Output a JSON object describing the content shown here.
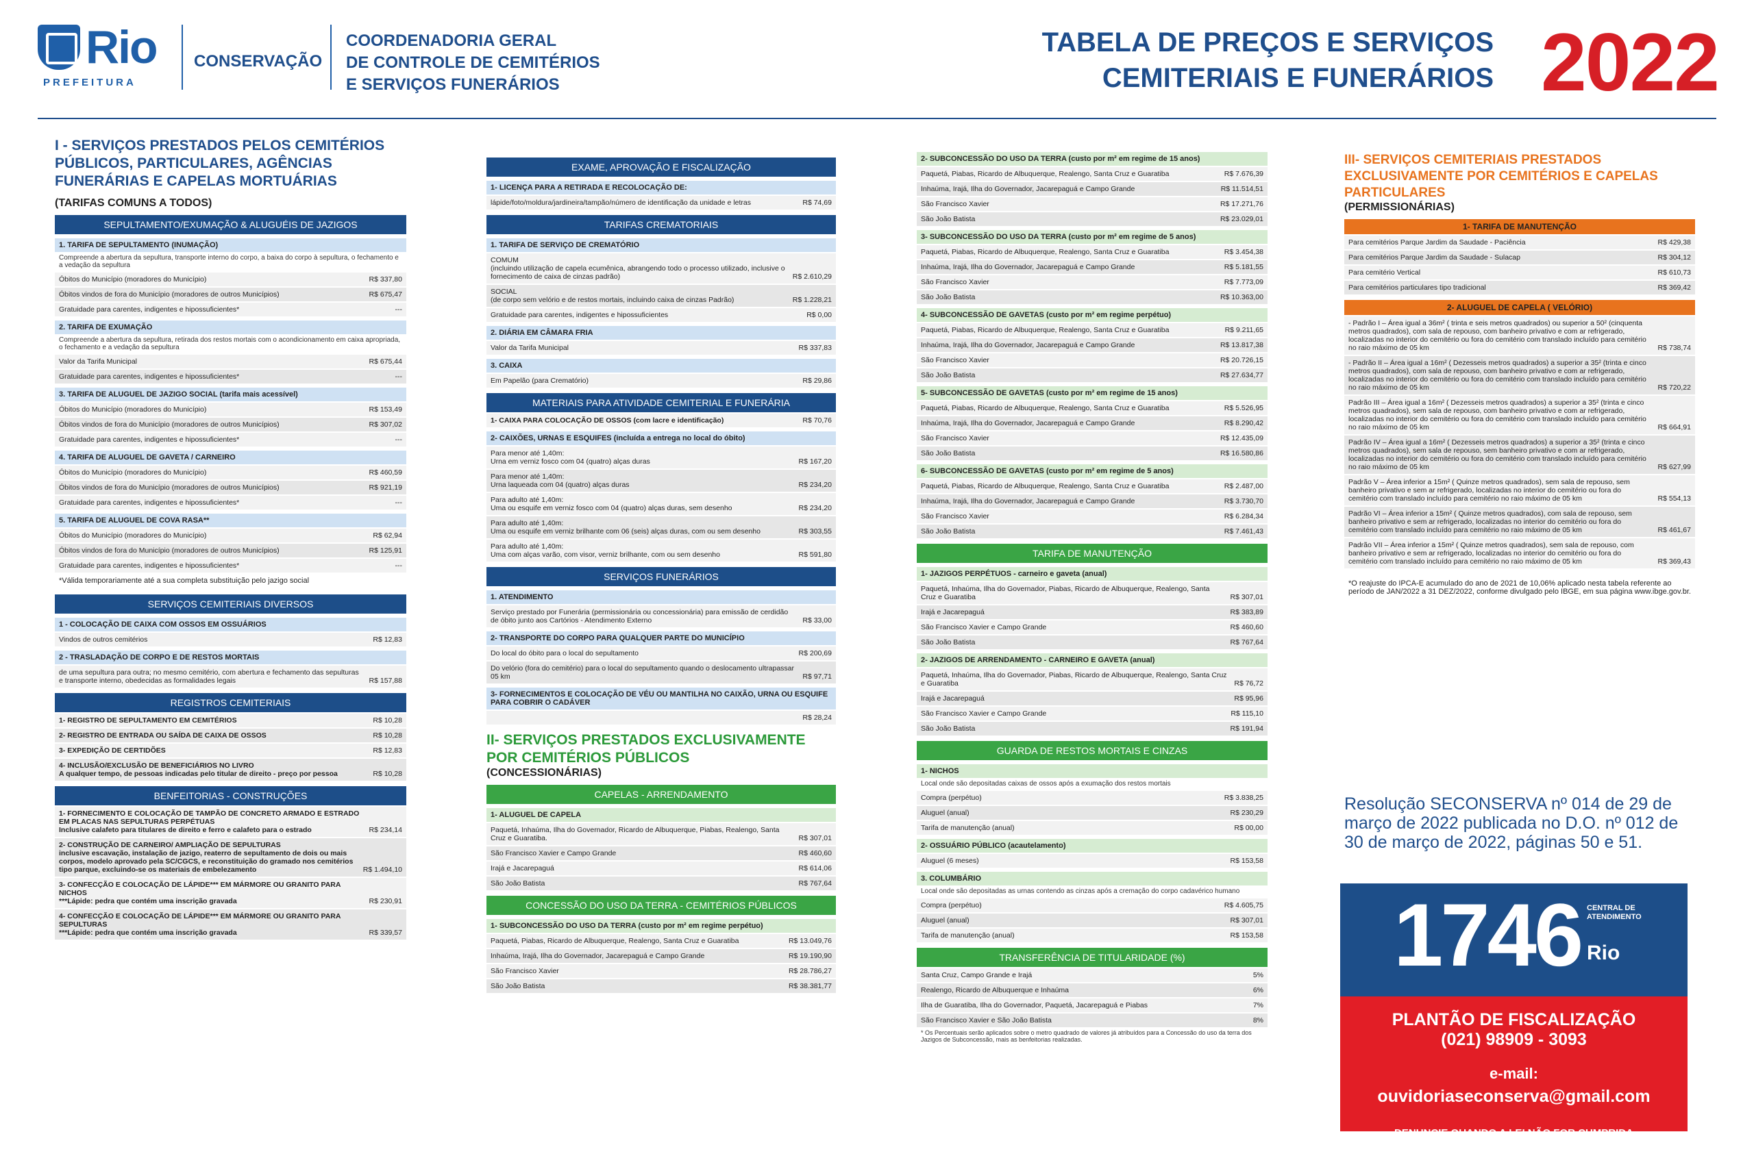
{
  "header": {
    "brand": "Rio",
    "prefeitura": "PREFEITURA",
    "conservacao": "CONSERVAÇÃO",
    "coord": [
      "COORDENADORIA GERAL",
      "DE CONTROLE DE CEMITÉRIOS",
      "E SERVIÇOS FUNERÁRIOS"
    ],
    "title": [
      "TABELA DE PREÇOS E SERVIÇOS",
      "CEMITERIAIS E FUNERÁRIOS"
    ],
    "year": "2022"
  },
  "colors": {
    "blue": "#1d4e89",
    "green": "#3aa545",
    "orange": "#e8731e",
    "red": "#d61f26"
  },
  "c1": {
    "sec": "I - SERVIÇOS PRESTADOS PELOS CEMITÉRIOS PÚBLICOS, PARTICULARES, AGÊNCIAS FUNERÁRIAS E CAPELAS MORTUÁRIAS",
    "sub": "(TARIFAS COMUNS A TODOS)",
    "bar1": "SEPULTAMENTO/EXUMAÇÃO & ALUGUÉIS DE JAZIGOS",
    "t1": "1. TARIFA DE SEPULTAMENTO (INUMAÇÃO)",
    "d1": "Compreende a abertura da sepultura, transporte interno do corpo, a baixa do corpo à sepultura, o fechamento e a vedação da sepultura",
    "r1": [
      [
        "Óbitos do Município (moradores do Município)",
        "R$ 337,80"
      ],
      [
        "Óbitos vindos de fora do Município (moradores de outros Municípios)",
        "R$ 675,47"
      ],
      [
        "Gratuidade para carentes, indigentes e hipossuficientes*",
        "---"
      ]
    ],
    "t2": "2. TARIFA DE EXUMAÇÃO",
    "d2": "Compreende a abertura da sepultura, retirada dos restos mortais com o acondicionamento em caixa apropriada, o fechamento e a vedação da sepultura",
    "r2": [
      [
        "Valor da Tarifa Municipal",
        "R$ 675,44"
      ],
      [
        "Gratuidade para carentes, indigentes e hipossuficientes*",
        "---"
      ]
    ],
    "t3": "3. TARIFA DE ALUGUEL DE JAZIGO SOCIAL (tarifa mais acessível)",
    "r3": [
      [
        "Óbitos do Município (moradores do Município)",
        "R$ 153,49"
      ],
      [
        "Óbitos vindos de fora do Município (moradores de outros Municípios)",
        "R$ 307,02"
      ],
      [
        "Gratuidade para carentes, indigentes e hipossuficientes*",
        "---"
      ]
    ],
    "t4": "4. TARIFA DE ALUGUEL DE GAVETA / CARNEIRO",
    "r4": [
      [
        "Óbitos do Município (moradores do Município)",
        "R$ 460,59"
      ],
      [
        "Óbitos vindos de fora do Município (moradores de outros Municípios)",
        "R$ 921,19"
      ],
      [
        "Gratuidade para carentes, indigentes e hipossuficientes*",
        "---"
      ]
    ],
    "t5": "5. TARIFA DE ALUGUEL DE COVA RASA**",
    "r5": [
      [
        "Óbitos do Município (moradores do Município)",
        "R$ 62,94"
      ],
      [
        "Óbitos vindos de fora do Município (moradores de outros Municípios)",
        "R$ 125,91"
      ],
      [
        "Gratuidade para carentes, indigentes e hipossuficientes*",
        "---"
      ]
    ],
    "n5": "*Válida temporariamente até a sua completa substituição pelo jazigo social",
    "bar2": "SERVIÇOS CEMITERIAIS DIVERSOS",
    "t6": "1 - COLOCAÇÃO DE CAIXA COM OSSOS EM OSSUÁRIOS",
    "r6": [
      [
        "Vindos de outros cemitérios",
        "R$ 12,83"
      ]
    ],
    "t7": "2 - TRASLADAÇÃO DE CORPO E DE RESTOS MORTAIS",
    "r7": [
      [
        "de uma sepultura para outra; no mesmo cemitério, com abertura e fechamento das sepulturas e transporte interno, obedecidas as formalidades legais",
        "R$ 157,88"
      ]
    ],
    "bar3": "REGISTROS CEMITERIAIS",
    "r8": [
      [
        "1- REGISTRO DE SEPULTAMENTO EM CEMITÉRIOS",
        "R$ 10,28"
      ],
      [
        "2- REGISTRO DE ENTRADA OU SAÍDA DE CAIXA DE OSSOS",
        "R$ 10,28"
      ],
      [
        "3- EXPEDIÇÃO DE CERTIDÕES",
        "R$ 12,83"
      ],
      [
        "4- INCLUSÃO/EXCLUSÃO DE BENEFICIÁRIOS NO LIVRO\nA qualquer tempo, de pessoas indicadas pelo titular de direito - preço por pessoa",
        "R$ 10,28"
      ]
    ],
    "bar4": "BENFEITORIAS - CONSTRUÇÕES",
    "r9": [
      [
        "1- FORNECIMENTO E COLOCAÇÃO DE TAMPÃO DE CONCRETO ARMADO E ESTRADO EM PLACAS NAS SEPULTURAS PERPÉTUAS\nInclusive calafeto para titulares de direito e ferro e calafeto para o estrado",
        "R$ 234,14"
      ],
      [
        "2- CONSTRUÇÃO DE CARNEIRO/ AMPLIAÇÃO DE SEPULTURAS\ninclusive escavação, instalação de jazigo, reaterro de sepultamento de dois ou mais corpos, modelo aprovado pela SC/CGCS, e reconstituição do gramado nos cemitérios tipo parque, excluindo-se os materiais de embelezamento",
        "R$ 1.494,10"
      ],
      [
        "3- CONFECÇÃO E COLOCAÇÃO DE LÁPIDE*** EM MÁRMORE OU GRANITO PARA NICHOS\n***Lápide: pedra que contém uma inscrição gravada",
        "R$ 230,91"
      ],
      [
        "4- CONFECÇÃO E COLOCAÇÃO DE LÁPIDE*** EM MÁRMORE OU GRANITO PARA SEPULTURAS\n***Lápide: pedra que contém uma inscrição gravada",
        "R$ 339,57"
      ]
    ]
  },
  "c2": {
    "bar1": "EXAME, APROVAÇÃO E FISCALIZAÇÃO",
    "t1": "1- LICENÇA PARA A RETIRADA E RECOLOCAÇÃO DE:",
    "r1": [
      [
        "lápide/foto/moldura/jardineira/tampão/número de identificação da unidade e letras",
        "R$ 74,69"
      ]
    ],
    "bar2": "TARIFAS CREMATORIAIS",
    "t2": "1. TARIFA DE SERVIÇO DE CREMATÓRIO",
    "r2": [
      [
        "COMUM\n(incluindo utilização de capela ecumênica, abrangendo todo o processo utilizado, inclusive o fornecimento de caixa de cinzas padrão)",
        "R$ 2.610,29"
      ],
      [
        "SOCIAL\n(de corpo sem velório e de restos mortais, incluindo caixa de cinzas Padrão)",
        "R$ 1.228,21"
      ],
      [
        "Gratuidade para carentes, indigentes e hipossuficientes",
        "R$ 0,00"
      ]
    ],
    "t3": "2. DIÁRIA EM CÂMARA FRIA",
    "r3": [
      [
        "Valor da Tarifa Municipal",
        "R$ 337,83"
      ]
    ],
    "t4": "3. CAIXA",
    "r4": [
      [
        "Em Papelão (para Crematório)",
        "R$ 29,86"
      ]
    ],
    "bar3": "MATERIAIS PARA ATIVIDADE CEMITERIAL E FUNERÁRIA",
    "r5": [
      [
        "1- CAIXA PARA COLOCAÇÃO DE OSSOS (com lacre e identificação)",
        "R$ 70,76"
      ]
    ],
    "t6": "2- CAIXÕES, URNAS E ESQUIFES (incluída a entrega no local do óbito)",
    "r6": [
      [
        "Para menor até 1,40m:\nUrna em verniz fosco com 04 (quatro) alças duras",
        "R$ 167,20"
      ],
      [
        "Para menor até 1,40m:\nUrna laqueada com 04 (quatro) alças duras",
        "R$ 234,20"
      ],
      [
        "Para adulto até 1,40m:\nUma ou esquife em verniz fosco com 04 (quatro) alças duras, sem desenho",
        "R$ 234,20"
      ],
      [
        "Para adulto até 1,40m:\nUma ou esquife em verniz brilhante com 06 (seis) alças duras, com ou sem desenho",
        "R$ 303,55"
      ],
      [
        "Para adulto até 1,40m:\nUma com alças varão, com visor, verniz brilhante, com ou sem desenho",
        "R$ 591,80"
      ]
    ],
    "bar4": "SERVIÇOS FUNERÁRIOS",
    "t7": "1. ATENDIMENTO",
    "r7": [
      [
        "Serviço prestado por Funerária (permissionária ou concessionária) para emissão de cerdidão de óbito junto aos Cartórios - Atendimento Externo",
        "R$ 33,00"
      ]
    ],
    "t8": "2- TRANSPORTE DO CORPO PARA QUALQUER PARTE DO MUNICÍPIO",
    "r8": [
      [
        "Do local do óbito para o local do sepultamento",
        "R$ 200,69"
      ],
      [
        "Do velório (fora do cemitério) para o local do sepultamento quando o deslocamento ultrapassar 05 km",
        "R$ 97,71"
      ]
    ],
    "t9": "3- FORNECIMENTOS E COLOCAÇÃO DE VÉU OU MANTILHA NO CAIXÃO, URNA OU ESQUIFE PARA COBRIR O CADÁVER",
    "r9": [
      [
        "",
        "R$ 28,24"
      ]
    ],
    "sec": "II- SERVIÇOS PRESTADOS EXCLUSIVAMENTE POR CEMITÉRIOS PÚBLICOS",
    "sub": "(CONCESSIONÁRIAS)",
    "bar5": "CAPELAS - ARRENDAMENTO",
    "t10": "1- ALUGUEL DE CAPELA",
    "r10": [
      [
        "Paquetá, Inhaúma, Ilha do Governador, Ricardo de Albuquerque, Piabas, Realengo, Santa Cruz e Guaratiba.",
        "R$ 307,01"
      ],
      [
        "São Francisco Xavier e Campo Grande",
        "R$ 460,60"
      ],
      [
        "Irajá e Jacarepaguá",
        "R$ 614,06"
      ],
      [
        "São João Batista",
        "R$ 767,64"
      ]
    ],
    "bar6": "CONCESSÃO DO USO DA TERRA - CEMITÉRIOS PÚBLICOS",
    "t11": "1- SUBCONCESSÃO DO USO DA TERRA (custo por m² em regime perpétuo)",
    "r11": [
      [
        "Paquetá, Piabas, Ricardo de Albuquerque, Realengo, Santa Cruz e Guaratiba",
        "R$ 13.049,76"
      ],
      [
        "Inhaúma, Irajá, Ilha do Governador, Jacarepaguá e Campo Grande",
        "R$ 19.190,90"
      ],
      [
        "São Francisco Xavier",
        "R$ 28.786,27"
      ],
      [
        "São João Batista",
        "R$ 38.381,77"
      ]
    ]
  },
  "c3": {
    "t1": "2- SUBCONCESSÃO DO USO DA TERRA (custo por m² em regime de 15 anos)",
    "r1": [
      [
        "Paquetá, Piabas, Ricardo de Albuquerque, Realengo, Santa Cruz e Guaratiba",
        "R$ 7.676,39"
      ],
      [
        "Inhaúma, Irajá, Ilha do Governador, Jacarepaguá e Campo Grande",
        "R$ 11.514,51"
      ],
      [
        "São Francisco Xavier",
        "R$ 17.271,76"
      ],
      [
        "São João Batista",
        "R$ 23.029,01"
      ]
    ],
    "t2": "3- SUBCONCESSÃO DO USO DA TERRA (custo por m² em regime de 5 anos)",
    "r2": [
      [
        "Paquetá, Piabas, Ricardo de Albuquerque, Realengo, Santa Cruz e Guaratiba",
        "R$ 3.454,38"
      ],
      [
        "Inhaúma, Irajá, Ilha do Governador, Jacarepaguá e Campo Grande",
        "R$ 5.181,55"
      ],
      [
        "São Francisco Xavier",
        "R$ 7.773,09"
      ],
      [
        "São João Batista",
        "R$ 10.363,00"
      ]
    ],
    "t3": "4- SUBCONCESSÃO DE GAVETAS (custo por m² em regime perpétuo)",
    "r3": [
      [
        "Paquetá, Piabas, Ricardo de Albuquerque, Realengo, Santa Cruz e Guaratiba",
        "R$ 9.211,65"
      ],
      [
        "Inhaúma, Irajá, Ilha do Governador, Jacarepaguá e Campo Grande",
        "R$ 13.817,38"
      ],
      [
        "São Francisco Xavier",
        "R$ 20.726,15"
      ],
      [
        "São João Batista",
        "R$ 27.634,77"
      ]
    ],
    "t4": "5- SUBCONCESSÃO DE GAVETAS (custo por m² em regime de 15 anos)",
    "r4": [
      [
        "Paquetá, Piabas, Ricardo de Albuquerque, Realengo, Santa Cruz e Guaratiba",
        "R$ 5.526,95"
      ],
      [
        "Inhaúma, Irajá, Ilha do Governador, Jacarepaguá e Campo Grande",
        "R$ 8.290,42"
      ],
      [
        "São Francisco Xavier",
        "R$ 12.435,09"
      ],
      [
        "São João Batista",
        "R$ 16.580,86"
      ]
    ],
    "t5": "6- SUBCONCESSÃO DE GAVETAS (custo por m² em regime de 5 anos)",
    "r5": [
      [
        "Paquetá, Piabas, Ricardo de Albuquerque, Realengo, Santa Cruz e Guaratiba",
        "R$ 2.487,00"
      ],
      [
        "Inhaúma, Irajá, Ilha do Governador, Jacarepaguá e Campo Grande",
        "R$ 3.730,70"
      ],
      [
        "São Francisco Xavier",
        "R$ 6.284,34"
      ],
      [
        "São João Batista",
        "R$ 7.461,43"
      ]
    ],
    "bar1": "TARIFA DE MANUTENÇÃO",
    "t6": "1- JAZIGOS PERPÉTUOS - carneiro e gaveta (anual)",
    "r6": [
      [
        "Paquetá, Inhaúma, Ilha do Governador, Piabas, Ricardo de Albuquerque, Realengo, Santa Cruz e Guaratiba",
        "R$ 307,01"
      ],
      [
        "Irajá e Jacarepaguá",
        "R$ 383,89"
      ],
      [
        "São Francisco Xavier e Campo Grande",
        "R$ 460,60"
      ],
      [
        "São João Batista",
        "R$ 767,64"
      ]
    ],
    "t7": "2- JAZIGOS DE ARRENDAMENTO - CARNEIRO E GAVETA (anual)",
    "r7": [
      [
        "Paquetá, Inhaúma, Ilha do Governador, Piabas, Ricardo de Albuquerque, Realengo, Santa Cruz e Guaratiba",
        "R$ 76,72"
      ],
      [
        "Irajá e Jacarepaguá",
        "R$ 95,96"
      ],
      [
        "São Francisco Xavier e Campo Grande",
        "R$ 115,10"
      ],
      [
        "São João Batista",
        "R$ 191,94"
      ]
    ],
    "bar2": "GUARDA DE RESTOS MORTAIS E CINZAS",
    "t8": "1- NICHOS",
    "d8": "Local onde são depositadas caixas de ossos após a exumação dos restos mortais",
    "r8": [
      [
        "Compra (perpétuo)",
        "R$ 3.838,25"
      ],
      [
        "Aluguel (anual)",
        "R$ 230,29"
      ],
      [
        "Tarifa de manutenção (anual)",
        "R$ 00,00"
      ]
    ],
    "t9": "2- OSSUÁRIO PÚBLICO (acautelamento)",
    "r9": [
      [
        "Aluguel (6 meses)",
        "R$ 153,58"
      ]
    ],
    "t10": "3. COLUMBÁRIO",
    "d10": "Local onde são depositadas as urnas contendo as cinzas após a cremação do corpo cadavérico humano",
    "r10": [
      [
        "Compra (perpétuo)",
        "R$ 4.605,75"
      ],
      [
        "Aluguel (anual)",
        "R$ 307,01"
      ],
      [
        "Tarifa de manutenção (anual)",
        "R$ 153,58"
      ]
    ],
    "bar3": "TRANSFERÊNCIA DE TITULARIDADE (%)",
    "r11": [
      [
        "Santa Cruz, Campo Grande e Irajá",
        "5%"
      ],
      [
        "Realengo, Ricardo de Albuquerque e Inhaúma",
        "6%"
      ],
      [
        "Ilha de Guaratiba, Ilha do Governador, Paquetá, Jacarepaguá e Piabas",
        "7%"
      ],
      [
        "São Francisco Xavier e São João Batista",
        "8%"
      ]
    ],
    "n": "* Os Percentuais serão aplicados sobre o metro quadrado de valores já atribuídos para a Concessão do uso da terra dos Jazigos de Subconcessão, mais as benfeitorias realizadas."
  },
  "c4": {
    "sec": "III- SERVIÇOS CEMITERIAIS PRESTADOS EXCLUSIVAMENTE POR CEMITÉRIOS E CAPELAS PARTICULARES",
    "sub": "(PERMISSIONÁRIAS)",
    "bar1": "1- TARIFA DE MANUTENÇÃO",
    "r1": [
      [
        "Para cemitérios Parque Jardim da Saudade - Paciência",
        "R$ 429,38"
      ],
      [
        "Para cemitérios Parque Jardim da Saudade - Sulacap",
        "R$ 304,12"
      ],
      [
        "Para cemitério Vertical",
        "R$ 610,73"
      ],
      [
        "Para cemitérios particulares tipo tradicional",
        "R$ 369,42"
      ]
    ],
    "bar2": "2- ALUGUEL DE CAPELA ( VELÓRIO)",
    "r2": [
      [
        "- Padrão I – Área igual a 36m² ( trinta e seis metros quadrados) ou superior a 50² (cinquenta metros quadrados), com sala de repouso, com banheiro privativo e com ar refrigerado, localizadas no interior do cemitério ou fora do cemitério com translado incluído para cemitério no raio máximo de 05 km",
        "R$ 738,74"
      ],
      [
        "- Padrão II – Área igual a 16m² ( Dezesseis metros quadrados) a superior a 35² (trinta e cinco metros quadrados), com sala de repouso, com banheiro privativo e com ar refrigerado, localizadas no interior do cemitério ou fora do cemitério com translado incluído para cemitério no raio máximo de 05 km",
        "R$ 720,22"
      ],
      [
        "Padrão III – Área igual a 16m² ( Dezesseis metros quadrados) a superior a 35² (trinta e cinco metros quadrados), sem sala de repouso, com banheiro privativo e com ar refrigerado, localizadas no interior do cemitério ou fora do cemitério com translado incluído para cemitério no raio máximo de 05 km",
        "R$ 664,91"
      ],
      [
        "Padrão IV – Área igual a 16m² ( Dezesseis metros quadrados) a superior a 35² (trinta e cinco metros quadrados), sem sala de repouso, sem banheiro privativo e com ar refrigerado, localizadas no interior do cemitério ou fora do cemitério com translado incluído para cemitério no raio máximo de 05 km",
        "R$ 627,99"
      ],
      [
        "Padrão V – Área inferior a 15m² ( Quinze metros quadrados), sem sala de repouso, sem banheiro privativo e sem ar refrigerado, localizadas no interior do cemitério ou fora do cemitério com translado incluído para cemitério no raio máximo de 05 km",
        "R$ 554,13"
      ],
      [
        "Padrão VI – Área inferior a 15m² ( Quinze metros quadrados), com sala de repouso, sem banheiro privativo e sem ar refrigerado, localizadas no interior do cemitério ou fora do cemitério com translado incluído para cemitério no raio máximo de 05 km",
        "R$ 461,67"
      ],
      [
        "Padrão VII – Área inferior a 15m² ( Quinze metros quadrados), sem sala de repouso, com banheiro privativo e sem ar refrigerado, localizadas no interior do cemitério ou fora do cemitério com translado incluído para cemitério no raio máximo de 05 km",
        "R$ 369,43"
      ]
    ],
    "n": "*O reajuste do IPCA-E acumulado do ano de 2021 de 10,06% aplicado nesta tabela referente ao período de JAN/2022 a 31 DEZ/2022, conforme divulgado pelo IBGE, em sua página www.ibge.gov.br.",
    "res": "Resolução SECONSERVA nº 014 de 29 de março de 2022 publicada no D.O. nº 012 de 30 de março de 2022, páginas 50 e 51.",
    "num": "1746",
    "central": "CENTRAL DE ATENDIMENTO",
    "plantao": "PLANTÃO DE FISCALIZAÇÃO",
    "tel": "(021) 98909 - 3093",
    "email_label": "e-mail:",
    "email": "ouvidoriaseconserva@gmail.com",
    "den": "DENUNCIE QUANDO A LEI NÃO FOR CUMPRIDA"
  }
}
